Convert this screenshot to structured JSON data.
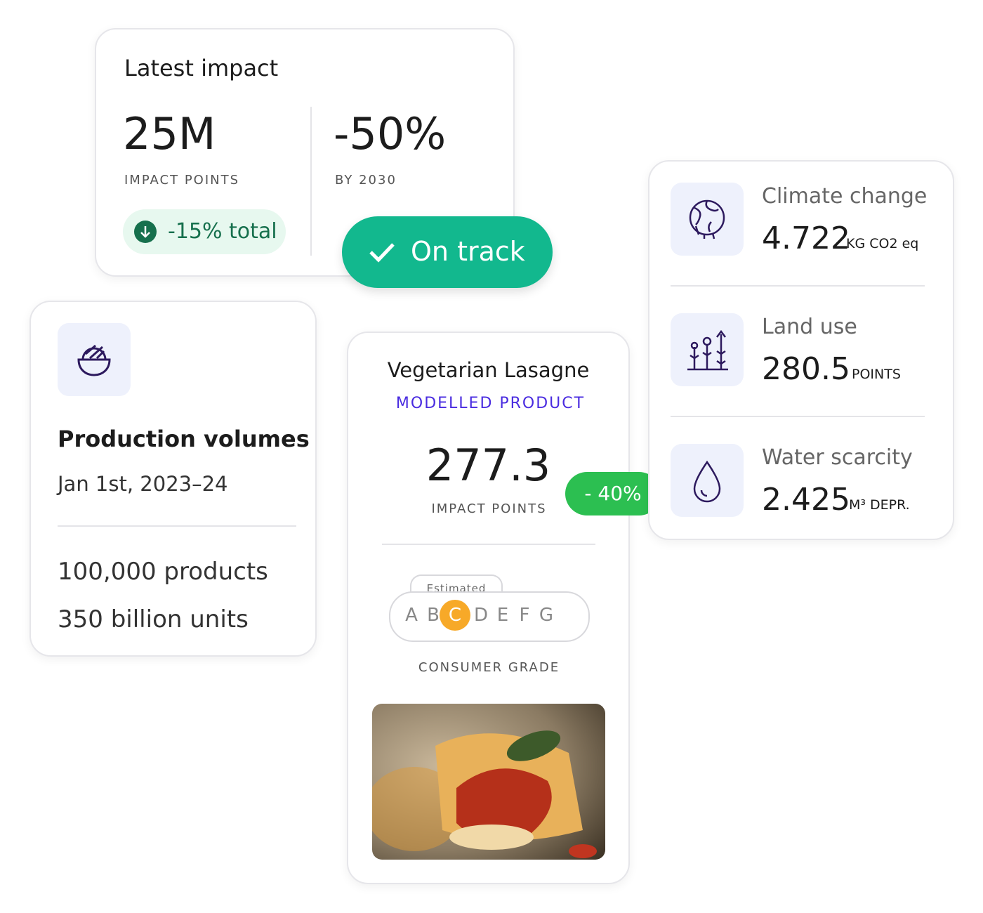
{
  "latest_impact": {
    "title": "Latest impact",
    "stats": [
      {
        "value": "25M",
        "label": "IMPACT POINTS"
      },
      {
        "value": "-50%",
        "label": "BY 2030"
      }
    ],
    "change": "-15% total"
  },
  "status": "On track",
  "production": {
    "title": "Production volumes",
    "period": "Jan 1st, 2023–24",
    "lines": [
      "100,000 products",
      "350 billion units"
    ]
  },
  "product": {
    "name": "Vegetarian Lasagne",
    "tag": "MODELLED PRODUCT",
    "value": "277.3",
    "unit": "IMPACT POINTS",
    "delta": "- 40%",
    "grade": {
      "note": "Estimated",
      "letters": [
        "A",
        "B",
        "C",
        "D",
        "E",
        "F",
        "G"
      ],
      "selected": 2,
      "caption": "CONSUMER GRADE"
    }
  },
  "indicators": [
    {
      "name": "Climate change",
      "value": "4.722",
      "unit": "KG CO2 eq"
    },
    {
      "name": "Land use",
      "value": "280.5",
      "unit": "POINTS"
    },
    {
      "name": "Water scarcity",
      "value": "2.425",
      "unit": "M³ DEPR."
    }
  ]
}
